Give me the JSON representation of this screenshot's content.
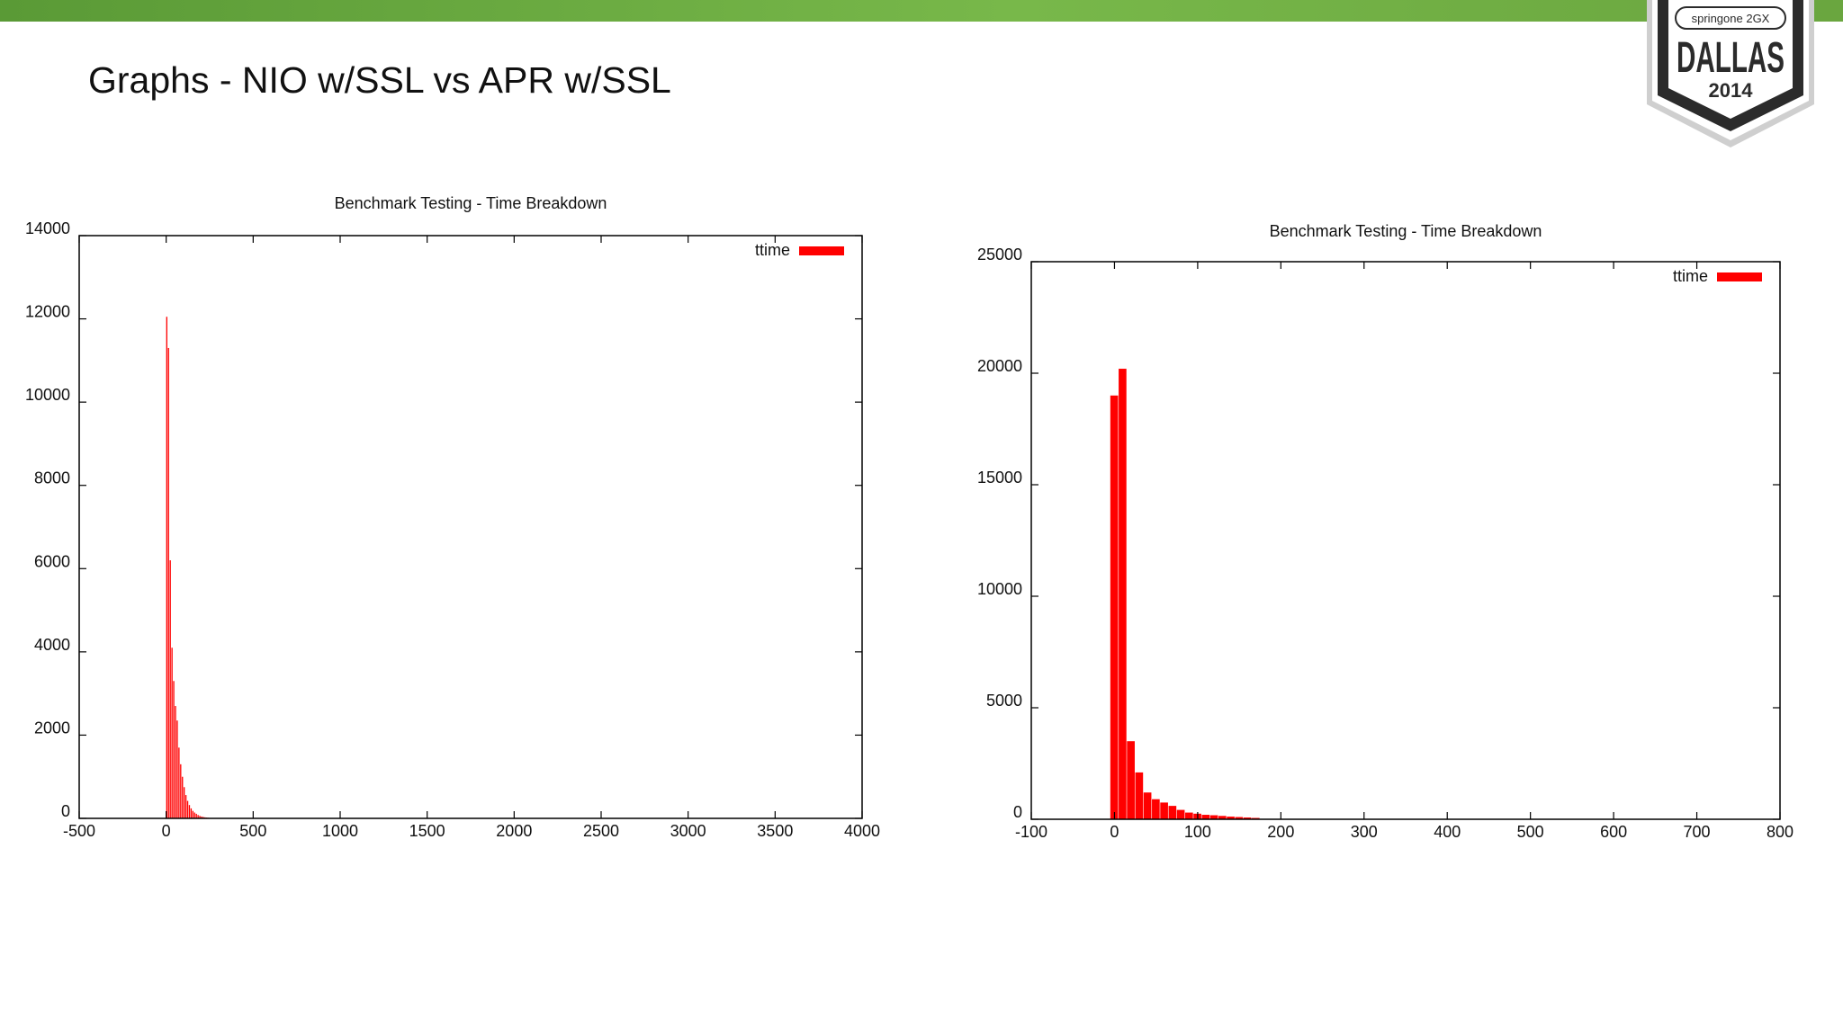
{
  "slide": {
    "title": "Graphs - NIO w/SSL vs APR w/SSL"
  },
  "badge": {
    "brand": "springone 2GX",
    "city": "DALLAS",
    "year": "2014"
  },
  "colors": {
    "bar": "#ff0000",
    "header_bar": "#72b244",
    "badge_dark": "#2b2b2b"
  },
  "chart_data": [
    {
      "type": "bar",
      "title": "Benchmark Testing - Time Breakdown",
      "xlabel": "",
      "ylabel": "",
      "xlim": [
        -500,
        4000
      ],
      "ylim": [
        0,
        14000
      ],
      "xticks": [
        -500,
        0,
        500,
        1000,
        1500,
        2000,
        2500,
        3000,
        3500,
        4000
      ],
      "yticks": [
        0,
        2000,
        4000,
        6000,
        8000,
        10000,
        12000,
        14000
      ],
      "legend_position": "top-right",
      "grid": false,
      "bin_width": 10,
      "series": [
        {
          "name": "ttime",
          "x": [
            0,
            10,
            20,
            30,
            40,
            50,
            60,
            70,
            80,
            90,
            100,
            110,
            120,
            130,
            140,
            150,
            160,
            170,
            180,
            190,
            200,
            210,
            220,
            230,
            240
          ],
          "values": [
            12050,
            11300,
            6200,
            4100,
            3300,
            2700,
            2350,
            1700,
            1300,
            1000,
            750,
            560,
            420,
            320,
            240,
            180,
            140,
            110,
            80,
            60,
            45,
            35,
            25,
            20,
            15
          ]
        }
      ]
    },
    {
      "type": "bar",
      "title": "Benchmark Testing - Time Breakdown",
      "xlabel": "",
      "ylabel": "",
      "xlim": [
        -100,
        800
      ],
      "ylim": [
        0,
        25000
      ],
      "xticks": [
        -100,
        0,
        100,
        200,
        300,
        400,
        500,
        600,
        700,
        800
      ],
      "yticks": [
        0,
        5000,
        10000,
        15000,
        20000,
        25000
      ],
      "legend_position": "top-right",
      "grid": false,
      "bin_width": 10,
      "series": [
        {
          "name": "ttime",
          "x": [
            -5,
            5,
            15,
            25,
            35,
            45,
            55,
            65,
            75,
            85,
            95,
            105,
            115,
            125,
            135,
            145,
            155,
            165
          ],
          "values": [
            19000,
            20200,
            3500,
            2100,
            1200,
            900,
            750,
            600,
            420,
            300,
            250,
            200,
            180,
            150,
            120,
            100,
            80,
            60
          ]
        }
      ]
    }
  ]
}
